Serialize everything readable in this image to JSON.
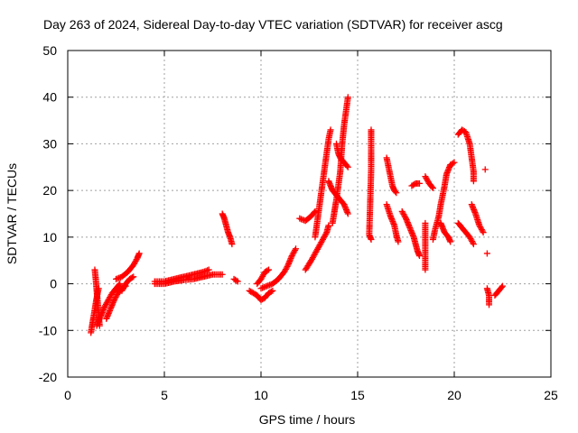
{
  "chart_data": {
    "type": "scatter",
    "title": "Day 263 of 2024, Sidereal Day-to-day VTEC variation (SDTVAR) for receiver ascg",
    "xlabel": "GPS time / hours",
    "ylabel": "SDTVAR / TECUs",
    "xlim": [
      0,
      25
    ],
    "ylim": [
      -20,
      50
    ],
    "x_ticks": [
      0,
      5,
      10,
      15,
      20,
      25
    ],
    "y_ticks": [
      -20,
      -10,
      0,
      10,
      20,
      30,
      40,
      50
    ],
    "grid": true,
    "marker": "plus",
    "series_color": "#ff0000",
    "series": [
      {
        "name": "SDTVAR",
        "segments": [
          [
            [
              1.2,
              -10.5
            ],
            [
              1.3,
              -8.0
            ],
            [
              1.4,
              -5.5
            ],
            [
              1.5,
              -3.0
            ],
            [
              1.6,
              -1.0
            ]
          ],
          [
            [
              1.4,
              3.0
            ],
            [
              1.45,
              1.0
            ],
            [
              1.5,
              -1.5
            ],
            [
              1.55,
              -4.0
            ],
            [
              1.6,
              -6.5
            ],
            [
              1.65,
              -9.0
            ]
          ],
          [
            [
              1.5,
              -9.0
            ],
            [
              1.7,
              -7.0
            ],
            [
              1.9,
              -5.0
            ],
            [
              2.1,
              -3.5
            ],
            [
              2.3,
              -2.0
            ],
            [
              2.5,
              -1.0
            ],
            [
              2.7,
              0.0
            ]
          ],
          [
            [
              2.0,
              -7.5
            ],
            [
              2.2,
              -5.5
            ],
            [
              2.4,
              -3.5
            ],
            [
              2.6,
              -2.0
            ],
            [
              2.8,
              -1.0
            ],
            [
              3.0,
              -0.5
            ]
          ],
          [
            [
              2.5,
              1.0
            ],
            [
              2.8,
              1.5
            ],
            [
              3.1,
              2.5
            ],
            [
              3.4,
              4.0
            ],
            [
              3.6,
              5.5
            ],
            [
              3.7,
              6.5
            ]
          ],
          [
            [
              2.8,
              -1.5
            ],
            [
              3.0,
              0.0
            ],
            [
              3.2,
              1.0
            ],
            [
              3.4,
              1.5
            ]
          ],
          [
            [
              4.5,
              0.5
            ],
            [
              5.0,
              0.5
            ],
            [
              5.5,
              1.0
            ],
            [
              6.0,
              1.5
            ],
            [
              6.5,
              2.0
            ],
            [
              7.0,
              2.5
            ],
            [
              7.3,
              3.0
            ]
          ],
          [
            [
              4.5,
              0.0
            ],
            [
              5.0,
              0.0
            ],
            [
              5.5,
              0.5
            ],
            [
              6.0,
              0.8
            ],
            [
              6.5,
              1.0
            ],
            [
              7.0,
              1.5
            ],
            [
              7.5,
              2.0
            ],
            [
              8.0,
              2.0
            ]
          ],
          [
            [
              8.0,
              15.0
            ],
            [
              8.1,
              14.0
            ],
            [
              8.2,
              12.5
            ],
            [
              8.3,
              11.0
            ],
            [
              8.4,
              10.0
            ],
            [
              8.5,
              8.5
            ]
          ],
          [
            [
              8.6,
              1.0
            ],
            [
              8.8,
              0.5
            ]
          ],
          [
            [
              9.4,
              -1.5
            ],
            [
              9.6,
              -2.0
            ],
            [
              9.8,
              -2.5
            ],
            [
              10.0,
              -3.5
            ],
            [
              10.2,
              -3.0
            ],
            [
              10.4,
              -2.0
            ],
            [
              10.6,
              -1.5
            ]
          ],
          [
            [
              9.8,
              0.0
            ],
            [
              10.0,
              1.0
            ],
            [
              10.2,
              2.5
            ],
            [
              10.4,
              3.0
            ]
          ],
          [
            [
              10.0,
              -1.0
            ],
            [
              10.3,
              -0.5
            ],
            [
              10.6,
              0.0
            ],
            [
              10.9,
              1.0
            ],
            [
              11.2,
              2.5
            ],
            [
              11.4,
              4.0
            ],
            [
              11.6,
              6.0
            ],
            [
              11.8,
              7.5
            ]
          ],
          [
            [
              12.0,
              14.0
            ],
            [
              12.3,
              13.5
            ],
            [
              12.6,
              14.5
            ],
            [
              12.8,
              15.5
            ]
          ],
          [
            [
              12.3,
              3.0
            ],
            [
              12.6,
              5.0
            ],
            [
              12.8,
              6.5
            ],
            [
              13.0,
              8.0
            ],
            [
              13.2,
              9.5
            ],
            [
              13.4,
              11.0
            ],
            [
              13.5,
              12.5
            ]
          ],
          [
            [
              12.8,
              10.0
            ],
            [
              12.9,
              13.0
            ],
            [
              13.0,
              16.0
            ],
            [
              13.1,
              19.0
            ],
            [
              13.2,
              22.0
            ],
            [
              13.3,
              25.0
            ],
            [
              13.4,
              28.0
            ],
            [
              13.5,
              31.0
            ],
            [
              13.6,
              33.0
            ]
          ],
          [
            [
              13.7,
              13.0
            ],
            [
              13.8,
              15.5
            ],
            [
              13.9,
              18.0
            ],
            [
              14.0,
              21.0
            ],
            [
              14.1,
              24.0
            ],
            [
              14.2,
              30.0
            ],
            [
              14.3,
              34.0
            ],
            [
              14.4,
              37.0
            ],
            [
              14.5,
              40.0
            ]
          ],
          [
            [
              13.9,
              30.0
            ],
            [
              14.0,
              28.0
            ],
            [
              14.1,
              27.0
            ],
            [
              14.3,
              26.0
            ],
            [
              14.5,
              25.0
            ]
          ],
          [
            [
              13.5,
              22.0
            ],
            [
              13.7,
              20.0
            ],
            [
              13.9,
              19.0
            ],
            [
              14.1,
              18.0
            ],
            [
              14.3,
              17.0
            ],
            [
              14.5,
              15.0
            ]
          ],
          [
            [
              15.7,
              33.0
            ],
            [
              15.7,
              24.5
            ],
            [
              15.6,
              10.5
            ],
            [
              15.7,
              9.5
            ]
          ],
          [
            [
              16.5,
              27.0
            ],
            [
              16.6,
              25.0
            ],
            [
              16.7,
              23.0
            ],
            [
              16.8,
              21.0
            ],
            [
              16.9,
              20.0
            ],
            [
              17.0,
              19.5
            ]
          ],
          [
            [
              16.5,
              17.0
            ],
            [
              16.7,
              14.5
            ],
            [
              16.9,
              12.5
            ],
            [
              17.0,
              10.5
            ],
            [
              17.1,
              9.0
            ]
          ],
          [
            [
              17.3,
              15.5
            ],
            [
              17.5,
              14.0
            ],
            [
              17.7,
              12.0
            ],
            [
              17.9,
              10.0
            ],
            [
              18.0,
              8.5
            ],
            [
              18.1,
              7.0
            ],
            [
              18.2,
              6.0
            ]
          ],
          [
            [
              17.8,
              21.0
            ],
            [
              18.0,
              21.5
            ],
            [
              18.2,
              21.5
            ]
          ],
          [
            [
              18.5,
              23.0
            ],
            [
              18.7,
              21.5
            ],
            [
              18.9,
              20.5
            ]
          ],
          [
            [
              18.5,
              3.0
            ],
            [
              18.5,
              13.0
            ]
          ],
          [
            [
              18.9,
              9.5
            ],
            [
              19.0,
              11.5
            ],
            [
              19.2,
              14.5
            ],
            [
              19.3,
              17.0
            ],
            [
              19.5,
              21.0
            ],
            [
              19.6,
              23.5
            ],
            [
              19.8,
              25.5
            ],
            [
              20.0,
              26.0
            ]
          ],
          [
            [
              19.3,
              13.0
            ],
            [
              19.5,
              11.0
            ],
            [
              19.7,
              10.0
            ],
            [
              19.8,
              9.0
            ]
          ],
          [
            [
              20.2,
              32.0
            ],
            [
              20.4,
              33.0
            ],
            [
              20.6,
              32.5
            ],
            [
              20.8,
              30.0
            ],
            [
              20.9,
              27.0
            ],
            [
              21.0,
              24.0
            ],
            [
              21.0,
              22.0
            ]
          ],
          [
            [
              20.2,
              13.0
            ],
            [
              20.4,
              12.0
            ],
            [
              20.6,
              11.0
            ],
            [
              20.8,
              10.0
            ],
            [
              21.0,
              8.5
            ]
          ],
          [
            [
              20.9,
              17.0
            ],
            [
              21.1,
              15.0
            ],
            [
              21.3,
              12.5
            ],
            [
              21.5,
              11.0
            ]
          ],
          [
            [
              21.6,
              24.5
            ]
          ],
          [
            [
              21.7,
              6.5
            ]
          ],
          [
            [
              21.7,
              -1.0
            ],
            [
              21.8,
              -2.5
            ],
            [
              21.8,
              -4.5
            ]
          ],
          [
            [
              22.1,
              -2.5
            ],
            [
              22.3,
              -1.5
            ],
            [
              22.5,
              -0.5
            ]
          ]
        ]
      }
    ]
  }
}
